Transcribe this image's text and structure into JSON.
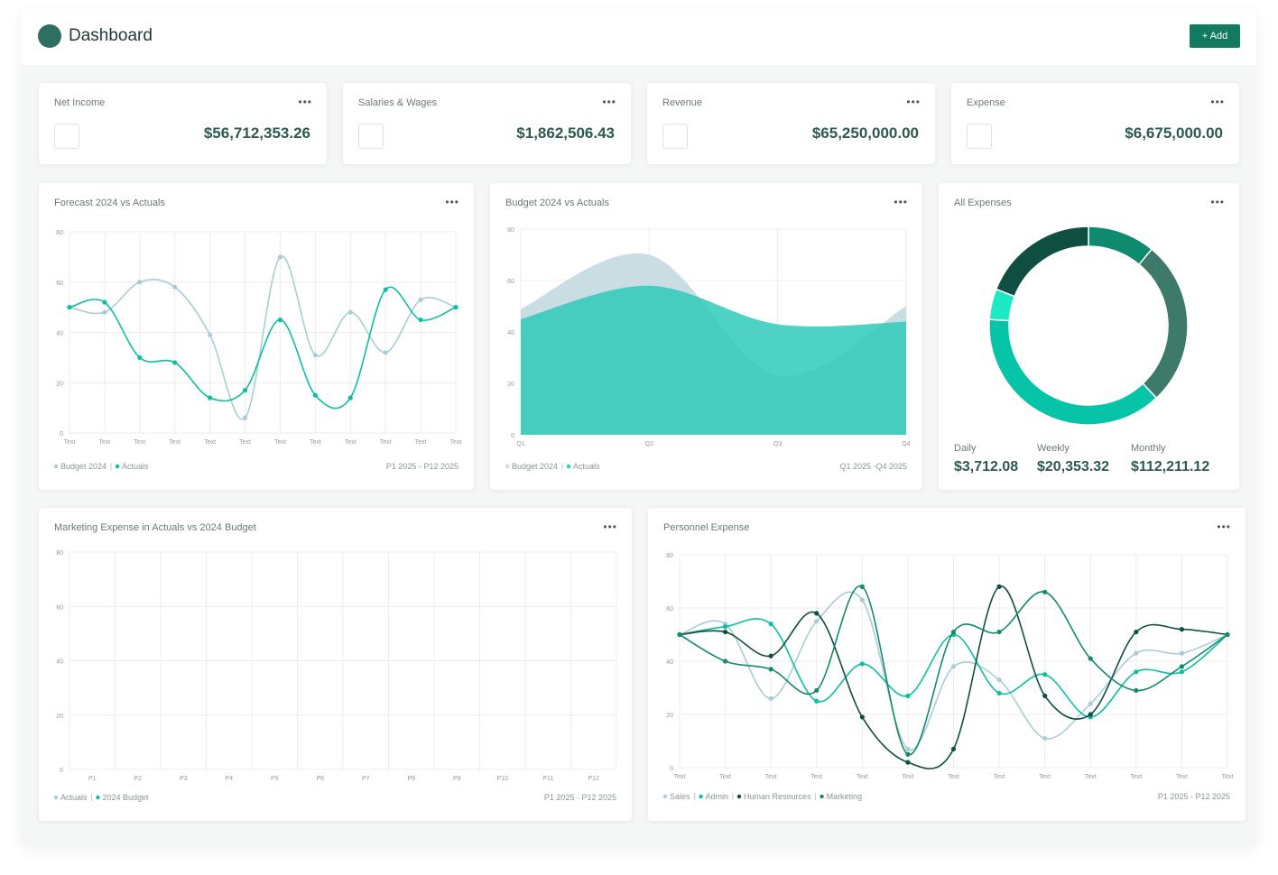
{
  "header": {
    "title": "Dashboard",
    "button": "+ Add"
  },
  "kpis": [
    {
      "label": "Net Income",
      "value": "$56,712,353.26"
    },
    {
      "label": "Salaries & Wages",
      "value": "$1,862,506.43"
    },
    {
      "label": "Revenue",
      "value": "$65,250,000.00"
    },
    {
      "label": "Expense",
      "value": "$6,675,000.00"
    }
  ],
  "chart_data": [
    {
      "type": "line",
      "title": "Forecast 2024 vs Actuals",
      "categories": [
        "Text",
        "Text",
        "Text",
        "Text",
        "Text",
        "Text",
        "Text",
        "Text",
        "Text",
        "Text",
        "Text",
        "Text"
      ],
      "series": [
        {
          "name": "Budget 2024",
          "color": "#a9cdd6",
          "values": [
            50,
            48,
            60,
            58,
            39,
            6,
            70,
            31,
            48,
            32,
            53,
            50
          ]
        },
        {
          "name": "Actuals",
          "color": "#0cbfa0",
          "values": [
            50,
            52,
            30,
            28,
            14,
            17,
            45,
            15,
            14,
            57,
            45,
            50
          ]
        }
      ],
      "ylim": [
        0,
        80
      ],
      "yticks": [
        0,
        20,
        40,
        60,
        80
      ],
      "grid": true,
      "footnote": "P1 2025 - P12 2025"
    },
    {
      "type": "area",
      "title": "Budget 2024 vs Actuals",
      "categories": [
        "Q1",
        "Q2",
        "Q3",
        "Q4"
      ],
      "series": [
        {
          "name": "Budget 2024",
          "color": "#c9dde3",
          "values": [
            49,
            70,
            23,
            50
          ]
        },
        {
          "name": "Actuals",
          "color": "#2fcab8",
          "values": [
            45,
            58,
            43,
            44
          ]
        }
      ],
      "ylim": [
        0,
        80
      ],
      "yticks": [
        0,
        20,
        40,
        60,
        80
      ],
      "grid": true,
      "footnote": "Q1 2025 -Q4 2025"
    },
    {
      "type": "pie",
      "title": "All Expenses",
      "donut": true,
      "values": [
        11,
        27,
        38,
        5,
        19
      ],
      "colors": [
        "#0e8a6e",
        "#3d7a6b",
        "#05c4a8",
        "#1de9c5",
        "#0f4f41"
      ],
      "stats": [
        {
          "label": "Daily",
          "value": "$3,712.08"
        },
        {
          "label": "Weekly",
          "value": "$20,353.32"
        },
        {
          "label": "Monthly",
          "value": "$112,211.12"
        }
      ]
    },
    {
      "type": "line",
      "title": "Marketing Expense in Actuals vs 2024 Budget",
      "categories": [
        "P1",
        "P2",
        "P3",
        "P4",
        "P5",
        "P6",
        "P7",
        "P8",
        "P9",
        "P10",
        "P11",
        "P12"
      ],
      "series": [
        {
          "name": "Actuals",
          "color": "#a9cdd6",
          "values": [
            null,
            null,
            null,
            null,
            null,
            null,
            null,
            null,
            null,
            null,
            null,
            null
          ]
        },
        {
          "name": "2024 Budget",
          "color": "#0cbfa0",
          "values": [
            null,
            null,
            null,
            null,
            null,
            null,
            null,
            null,
            null,
            null,
            null,
            null
          ]
        }
      ],
      "ylim": [
        0,
        80
      ],
      "yticks": [
        0,
        20,
        40,
        60,
        80
      ],
      "grid": true,
      "footnote": "P1 2025 - P12 2025"
    },
    {
      "type": "line",
      "title": "Personnel Expense",
      "categories": [
        "Text",
        "Text",
        "Text",
        "Text",
        "Text",
        "Text",
        "Text",
        "Text",
        "Text",
        "Text",
        "Text",
        "Text",
        "Text"
      ],
      "series": [
        {
          "name": "Sales",
          "color": "#a9cdd6",
          "values": [
            50,
            54,
            26,
            55,
            63,
            7,
            38,
            33,
            11,
            24,
            43,
            43,
            50
          ]
        },
        {
          "name": "Admin",
          "color": "#0cbfa0",
          "values": [
            50,
            53,
            54,
            25,
            39,
            27,
            50,
            28,
            35,
            19,
            36,
            36,
            50
          ]
        },
        {
          "name": "Human Resources",
          "color": "#0f4f41",
          "values": [
            50,
            51,
            42,
            58,
            19,
            2,
            7,
            68,
            27,
            20,
            51,
            52,
            50
          ]
        },
        {
          "name": "Marketing",
          "color": "#138a6e",
          "values": [
            50,
            40,
            37,
            29,
            68,
            5,
            51,
            51,
            66,
            41,
            29,
            38,
            50
          ]
        }
      ],
      "ylim": [
        0,
        80
      ],
      "yticks": [
        0,
        20,
        40,
        60,
        80
      ],
      "grid": true,
      "footnote": "P1 2025 - P12 2025"
    }
  ]
}
